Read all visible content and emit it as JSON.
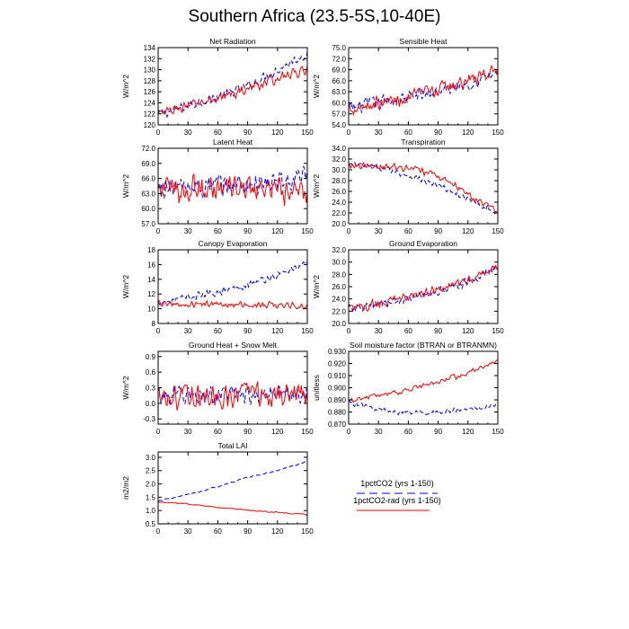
{
  "figure": {
    "title": "Southern Africa (23.5-5S,10-40E)"
  },
  "legend": {
    "entries": [
      {
        "label": "1pctCO2 (yrs 1-150)",
        "color": "#0000ff",
        "dash": "dashed"
      },
      {
        "label": "1pctCO2-rad (yrs 1-150)",
        "color": "#ff0000",
        "dash": "solid"
      }
    ]
  },
  "chart_data": [
    {
      "type": "line",
      "title": "Net Radiation",
      "ylabel": "W/m^2",
      "xlim": [
        0,
        150
      ],
      "ylim": [
        120,
        134
      ],
      "xticks": [
        "0",
        "30",
        "60",
        "90",
        "120",
        "150"
      ],
      "yticks": [
        "120",
        "122",
        "124",
        "126",
        "128",
        "130",
        "132",
        "134"
      ],
      "series": [
        {
          "color": "#0000ff",
          "dash": "dashed",
          "trend": [
            [
              0,
              121.8
            ],
            [
              30,
              123.5
            ],
            [
              60,
              125
            ],
            [
              90,
              127
            ],
            [
              120,
              130
            ],
            [
              150,
              133
            ]
          ],
          "noise": 1.1
        },
        {
          "color": "#ff0000",
          "dash": "solid",
          "trend": [
            [
              0,
              121.8
            ],
            [
              30,
              123.5
            ],
            [
              60,
              124.8
            ],
            [
              90,
              126.5
            ],
            [
              120,
              128.5
            ],
            [
              150,
              130
            ]
          ],
          "noise": 1.1
        }
      ]
    },
    {
      "type": "line",
      "title": "Sensible Heat",
      "ylabel": "W/m^2",
      "xlim": [
        0,
        150
      ],
      "ylim": [
        54,
        75
      ],
      "xticks": [
        "0",
        "30",
        "60",
        "90",
        "120",
        "150"
      ],
      "yticks": [
        "54.0",
        "57.0",
        "60.0",
        "63.0",
        "66.0",
        "69.0",
        "72.0",
        "75.0"
      ],
      "series": [
        {
          "color": "#0000ff",
          "dash": "dashed",
          "trend": [
            [
              0,
              58.5
            ],
            [
              30,
              60
            ],
            [
              60,
              61.5
            ],
            [
              90,
              63
            ],
            [
              120,
              65.5
            ],
            [
              150,
              68
            ]
          ],
          "noise": 2.4
        },
        {
          "color": "#ff0000",
          "dash": "solid",
          "trend": [
            [
              0,
              58.5
            ],
            [
              30,
              60
            ],
            [
              60,
              61.5
            ],
            [
              90,
              63.5
            ],
            [
              120,
              66
            ],
            [
              150,
              69
            ]
          ],
          "noise": 2.4
        }
      ]
    },
    {
      "type": "line",
      "title": "Latent Heat",
      "ylabel": "W/m^2",
      "xlim": [
        0,
        150
      ],
      "ylim": [
        57,
        72
      ],
      "xticks": [
        "0",
        "30",
        "60",
        "90",
        "120",
        "150"
      ],
      "yticks": [
        "57.0",
        "60.0",
        "63.0",
        "66.0",
        "69.0",
        "72.0"
      ],
      "series": [
        {
          "color": "#0000ff",
          "dash": "dashed",
          "trend": [
            [
              0,
              64
            ],
            [
              60,
              64.5
            ],
            [
              120,
              65
            ],
            [
              150,
              66
            ]
          ],
          "noise": 3.0
        },
        {
          "color": "#ff0000",
          "dash": "solid",
          "trend": [
            [
              0,
              64
            ],
            [
              60,
              64
            ],
            [
              120,
              63.5
            ],
            [
              150,
              63
            ]
          ],
          "noise": 3.2
        }
      ]
    },
    {
      "type": "line",
      "title": "Transpiration",
      "ylabel": "W/m^2",
      "xlim": [
        0,
        150
      ],
      "ylim": [
        20,
        34
      ],
      "xticks": [
        "0",
        "30",
        "60",
        "90",
        "120",
        "150"
      ],
      "yticks": [
        "20.0",
        "22.0",
        "24.0",
        "26.0",
        "28.0",
        "30.0",
        "32.0",
        "34.0"
      ],
      "series": [
        {
          "color": "#0000ff",
          "dash": "dashed",
          "trend": [
            [
              0,
              31
            ],
            [
              30,
              30.5
            ],
            [
              60,
              29
            ],
            [
              90,
              27
            ],
            [
              120,
              24.5
            ],
            [
              150,
              22
            ]
          ],
          "noise": 0.7
        },
        {
          "color": "#ff0000",
          "dash": "solid",
          "trend": [
            [
              0,
              31
            ],
            [
              30,
              30.8
            ],
            [
              60,
              30.2
            ],
            [
              90,
              29
            ],
            [
              120,
              25.5
            ],
            [
              150,
              22
            ]
          ],
          "noise": 0.8
        }
      ]
    },
    {
      "type": "line",
      "title": "Canopy Evaporation",
      "ylabel": "W/m^2",
      "xlim": [
        0,
        150
      ],
      "ylim": [
        8,
        18
      ],
      "xticks": [
        "0",
        "30",
        "60",
        "90",
        "120",
        "150"
      ],
      "yticks": [
        "8",
        "10",
        "12",
        "14",
        "16",
        "18"
      ],
      "series": [
        {
          "color": "#0000ff",
          "dash": "dashed",
          "trend": [
            [
              0,
              10.8
            ],
            [
              30,
              11.5
            ],
            [
              60,
              12.3
            ],
            [
              90,
              13.3
            ],
            [
              120,
              14.5
            ],
            [
              150,
              16.3
            ]
          ],
          "noise": 0.6
        },
        {
          "color": "#ff0000",
          "dash": "solid",
          "trend": [
            [
              0,
              10.7
            ],
            [
              60,
              10.6
            ],
            [
              120,
              10.5
            ],
            [
              150,
              10.3
            ]
          ],
          "noise": 0.5
        }
      ]
    },
    {
      "type": "line",
      "title": "Ground Evaporation",
      "ylabel": "W/m^2",
      "xlim": [
        0,
        150
      ],
      "ylim": [
        20,
        32
      ],
      "xticks": [
        "0",
        "30",
        "60",
        "90",
        "120",
        "150"
      ],
      "yticks": [
        "20.0",
        "22.0",
        "24.0",
        "26.0",
        "28.0",
        "30.0",
        "32.0"
      ],
      "series": [
        {
          "color": "#0000ff",
          "dash": "dashed",
          "trend": [
            [
              0,
              22.3
            ],
            [
              30,
              23
            ],
            [
              60,
              24
            ],
            [
              90,
              25.2
            ],
            [
              120,
              26.7
            ],
            [
              150,
              29
            ]
          ],
          "noise": 0.9
        },
        {
          "color": "#ff0000",
          "dash": "solid",
          "trend": [
            [
              0,
              22.3
            ],
            [
              30,
              23.2
            ],
            [
              60,
              24.3
            ],
            [
              90,
              25.5
            ],
            [
              120,
              27
            ],
            [
              150,
              29.2
            ]
          ],
          "noise": 0.9
        }
      ]
    },
    {
      "type": "line",
      "title": "Ground Heat + Snow Melt",
      "ylabel": "W/m^2",
      "xlim": [
        0,
        150
      ],
      "ylim": [
        -0.4,
        1.0
      ],
      "xticks": [
        "0",
        "30",
        "60",
        "90",
        "120",
        "150"
      ],
      "yticks": [
        "-0.3",
        "0.0",
        "0.3",
        "0.6",
        "0.9"
      ],
      "yticks_values": [
        -0.3,
        0.0,
        0.3,
        0.6,
        0.9
      ],
      "series": [
        {
          "color": "#0000ff",
          "dash": "dashed",
          "trend": [
            [
              0,
              0.15
            ],
            [
              150,
              0.18
            ]
          ],
          "noise": 0.22
        },
        {
          "color": "#ff0000",
          "dash": "solid",
          "trend": [
            [
              0,
              0.15
            ],
            [
              150,
              0.2
            ]
          ],
          "noise": 0.3
        }
      ]
    },
    {
      "type": "line",
      "title": "Soil moisture factor (BTRAN or BTRANMN)",
      "ylabel": "unitless",
      "xlim": [
        0,
        150
      ],
      "ylim": [
        0.87,
        0.93
      ],
      "xticks": [
        "0",
        "30",
        "60",
        "90",
        "120",
        "150"
      ],
      "yticks": [
        "0.870",
        "0.880",
        "0.890",
        "0.900",
        "0.910",
        "0.920",
        "0.930"
      ],
      "series": [
        {
          "color": "#0000ff",
          "dash": "dashed",
          "trend": [
            [
              0,
              0.888
            ],
            [
              30,
              0.882
            ],
            [
              60,
              0.879
            ],
            [
              90,
              0.88
            ],
            [
              120,
              0.882
            ],
            [
              150,
              0.886
            ]
          ],
          "noise": 0.0025
        },
        {
          "color": "#ff0000",
          "dash": "solid",
          "trend": [
            [
              0,
              0.889
            ],
            [
              30,
              0.894
            ],
            [
              60,
              0.898
            ],
            [
              90,
              0.905
            ],
            [
              120,
              0.912
            ],
            [
              150,
              0.922
            ]
          ],
          "noise": 0.0025
        }
      ]
    },
    {
      "type": "line",
      "title": "Total LAI",
      "ylabel": "m2/m2",
      "xlim": [
        0,
        150
      ],
      "ylim": [
        0.5,
        3.2
      ],
      "xticks": [
        "0",
        "30",
        "60",
        "90",
        "120",
        "150"
      ],
      "yticks": [
        "0.5",
        "1.0",
        "1.5",
        "2.0",
        "2.5",
        "3.0"
      ],
      "series": [
        {
          "color": "#0000ff",
          "dash": "dashed",
          "trend": [
            [
              0,
              1.35
            ],
            [
              30,
              1.6
            ],
            [
              60,
              1.9
            ],
            [
              90,
              2.25
            ],
            [
              120,
              2.5
            ],
            [
              150,
              2.85
            ]
          ],
          "noise": 0.035
        },
        {
          "color": "#ff0000",
          "dash": "solid",
          "trend": [
            [
              0,
              1.32
            ],
            [
              30,
              1.25
            ],
            [
              60,
              1.12
            ],
            [
              90,
              1.02
            ],
            [
              120,
              0.93
            ],
            [
              150,
              0.85
            ]
          ],
          "noise": 0.025
        }
      ]
    }
  ]
}
